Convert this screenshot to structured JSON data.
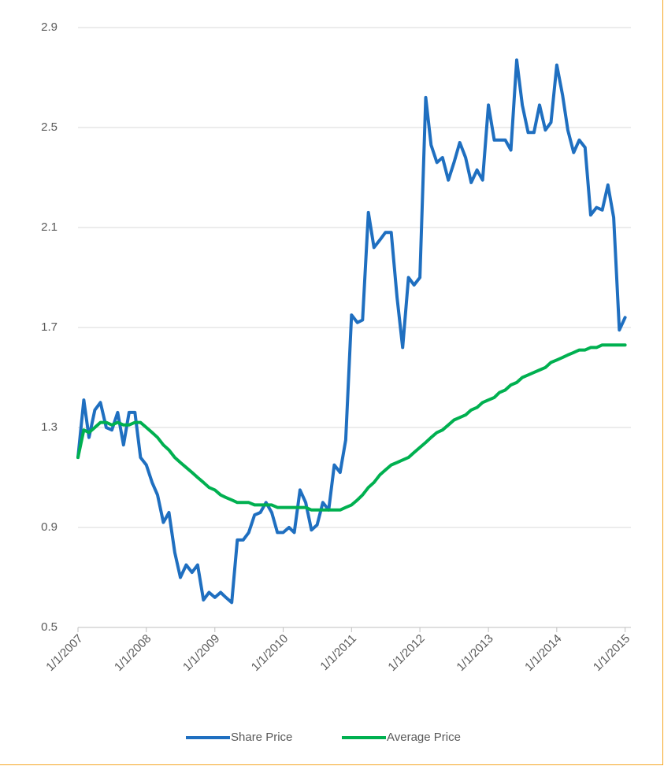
{
  "chart_data": {
    "type": "line",
    "x": [
      "2007-01-01",
      "2007-02-01",
      "2007-03-01",
      "2007-04-01",
      "2007-05-01",
      "2007-06-01",
      "2007-07-01",
      "2007-08-01",
      "2007-09-01",
      "2007-10-01",
      "2007-11-01",
      "2007-12-01",
      "2008-01-01",
      "2008-02-01",
      "2008-03-01",
      "2008-04-01",
      "2008-05-01",
      "2008-06-01",
      "2008-07-01",
      "2008-08-01",
      "2008-09-01",
      "2008-10-01",
      "2008-11-01",
      "2008-12-01",
      "2009-01-01",
      "2009-02-01",
      "2009-03-01",
      "2009-04-01",
      "2009-05-01",
      "2009-06-01",
      "2009-07-01",
      "2009-08-01",
      "2009-09-01",
      "2009-10-01",
      "2009-11-01",
      "2009-12-01",
      "2010-01-01",
      "2010-02-01",
      "2010-03-01",
      "2010-04-01",
      "2010-05-01",
      "2010-06-01",
      "2010-07-01",
      "2010-08-01",
      "2010-09-01",
      "2010-10-01",
      "2010-11-01",
      "2010-12-01",
      "2011-01-01",
      "2011-02-01",
      "2011-03-01",
      "2011-04-01",
      "2011-05-01",
      "2011-06-01",
      "2011-07-01",
      "2011-08-01",
      "2011-09-01",
      "2011-10-01",
      "2011-11-01",
      "2011-12-01",
      "2012-01-01",
      "2012-02-01",
      "2012-03-01",
      "2012-04-01",
      "2012-05-01",
      "2012-06-01",
      "2012-07-01",
      "2012-08-01",
      "2012-09-01",
      "2012-10-01",
      "2012-11-01",
      "2012-12-01",
      "2013-01-01",
      "2013-02-01",
      "2013-03-01",
      "2013-04-01",
      "2013-05-01",
      "2013-06-01",
      "2013-07-01",
      "2013-08-01",
      "2013-09-01",
      "2013-10-01",
      "2013-11-01",
      "2013-12-01",
      "2014-01-01",
      "2014-02-01",
      "2014-03-01",
      "2014-04-01",
      "2014-05-01",
      "2014-06-01",
      "2014-07-01",
      "2014-08-01",
      "2014-09-01",
      "2014-10-01",
      "2014-11-01",
      "2014-12-01",
      "2015-01-01"
    ],
    "series": [
      {
        "name": "Share Price",
        "color": "#1f6fc0",
        "values": [
          1.18,
          1.41,
          1.26,
          1.37,
          1.4,
          1.3,
          1.29,
          1.36,
          1.23,
          1.36,
          1.36,
          1.18,
          1.15,
          1.08,
          1.03,
          0.92,
          0.96,
          0.8,
          0.7,
          0.75,
          0.72,
          0.75,
          0.61,
          0.64,
          0.62,
          0.64,
          0.62,
          0.6,
          0.85,
          0.85,
          0.88,
          0.95,
          0.96,
          1.0,
          0.96,
          0.88,
          0.88,
          0.9,
          0.88,
          1.05,
          1.0,
          0.89,
          0.91,
          1.0,
          0.97,
          1.15,
          1.12,
          1.25,
          1.75,
          1.72,
          1.73,
          2.16,
          2.02,
          2.05,
          2.08,
          2.08,
          1.82,
          1.62,
          1.9,
          1.87,
          1.9,
          2.62,
          2.43,
          2.36,
          2.38,
          2.29,
          2.36,
          2.44,
          2.38,
          2.28,
          2.33,
          2.29,
          2.59,
          2.45,
          2.45,
          2.45,
          2.41,
          2.77,
          2.59,
          2.48,
          2.48,
          2.59,
          2.49,
          2.52,
          2.75,
          2.63,
          2.49,
          2.4,
          2.45,
          2.42,
          2.15,
          2.18,
          2.17,
          2.27,
          2.14,
          1.69,
          1.74
        ]
      },
      {
        "name": "Average Price",
        "color": "#00b050",
        "values": [
          1.18,
          1.29,
          1.28,
          1.3,
          1.32,
          1.32,
          1.31,
          1.32,
          1.31,
          1.31,
          1.32,
          1.32,
          1.3,
          1.28,
          1.26,
          1.23,
          1.21,
          1.18,
          1.16,
          1.14,
          1.12,
          1.1,
          1.08,
          1.06,
          1.05,
          1.03,
          1.02,
          1.01,
          1.0,
          1.0,
          1.0,
          0.99,
          0.99,
          0.99,
          0.99,
          0.98,
          0.98,
          0.98,
          0.98,
          0.98,
          0.98,
          0.97,
          0.97,
          0.97,
          0.97,
          0.97,
          0.97,
          0.98,
          0.99,
          1.01,
          1.03,
          1.06,
          1.08,
          1.11,
          1.13,
          1.15,
          1.16,
          1.17,
          1.18,
          1.2,
          1.22,
          1.24,
          1.26,
          1.28,
          1.29,
          1.31,
          1.33,
          1.34,
          1.35,
          1.37,
          1.38,
          1.4,
          1.41,
          1.42,
          1.44,
          1.45,
          1.47,
          1.48,
          1.5,
          1.51,
          1.52,
          1.53,
          1.54,
          1.56,
          1.57,
          1.58,
          1.59,
          1.6,
          1.61,
          1.61,
          1.62,
          1.62,
          1.63,
          1.63,
          1.63,
          1.63,
          1.63
        ]
      }
    ],
    "xlim": [
      "2007-01-01",
      "2015-02-01"
    ],
    "xticks": [
      {
        "value": "2007-01-01",
        "label": "1/1/2007"
      },
      {
        "value": "2008-01-01",
        "label": "1/1/2008"
      },
      {
        "value": "2009-01-01",
        "label": "1/1/2009"
      },
      {
        "value": "2010-01-01",
        "label": "1/1/2010"
      },
      {
        "value": "2011-01-01",
        "label": "1/1/2011"
      },
      {
        "value": "2012-01-01",
        "label": "1/1/2012"
      },
      {
        "value": "2013-01-01",
        "label": "1/1/2013"
      },
      {
        "value": "2014-01-01",
        "label": "1/1/2014"
      },
      {
        "value": "2015-01-01",
        "label": "1/1/2015"
      }
    ],
    "ylim": [
      0.5,
      2.9
    ],
    "yticks": [
      0.5,
      0.9,
      1.3,
      1.7,
      2.1,
      2.5,
      2.9
    ],
    "grid": true,
    "legend": "bottom"
  }
}
